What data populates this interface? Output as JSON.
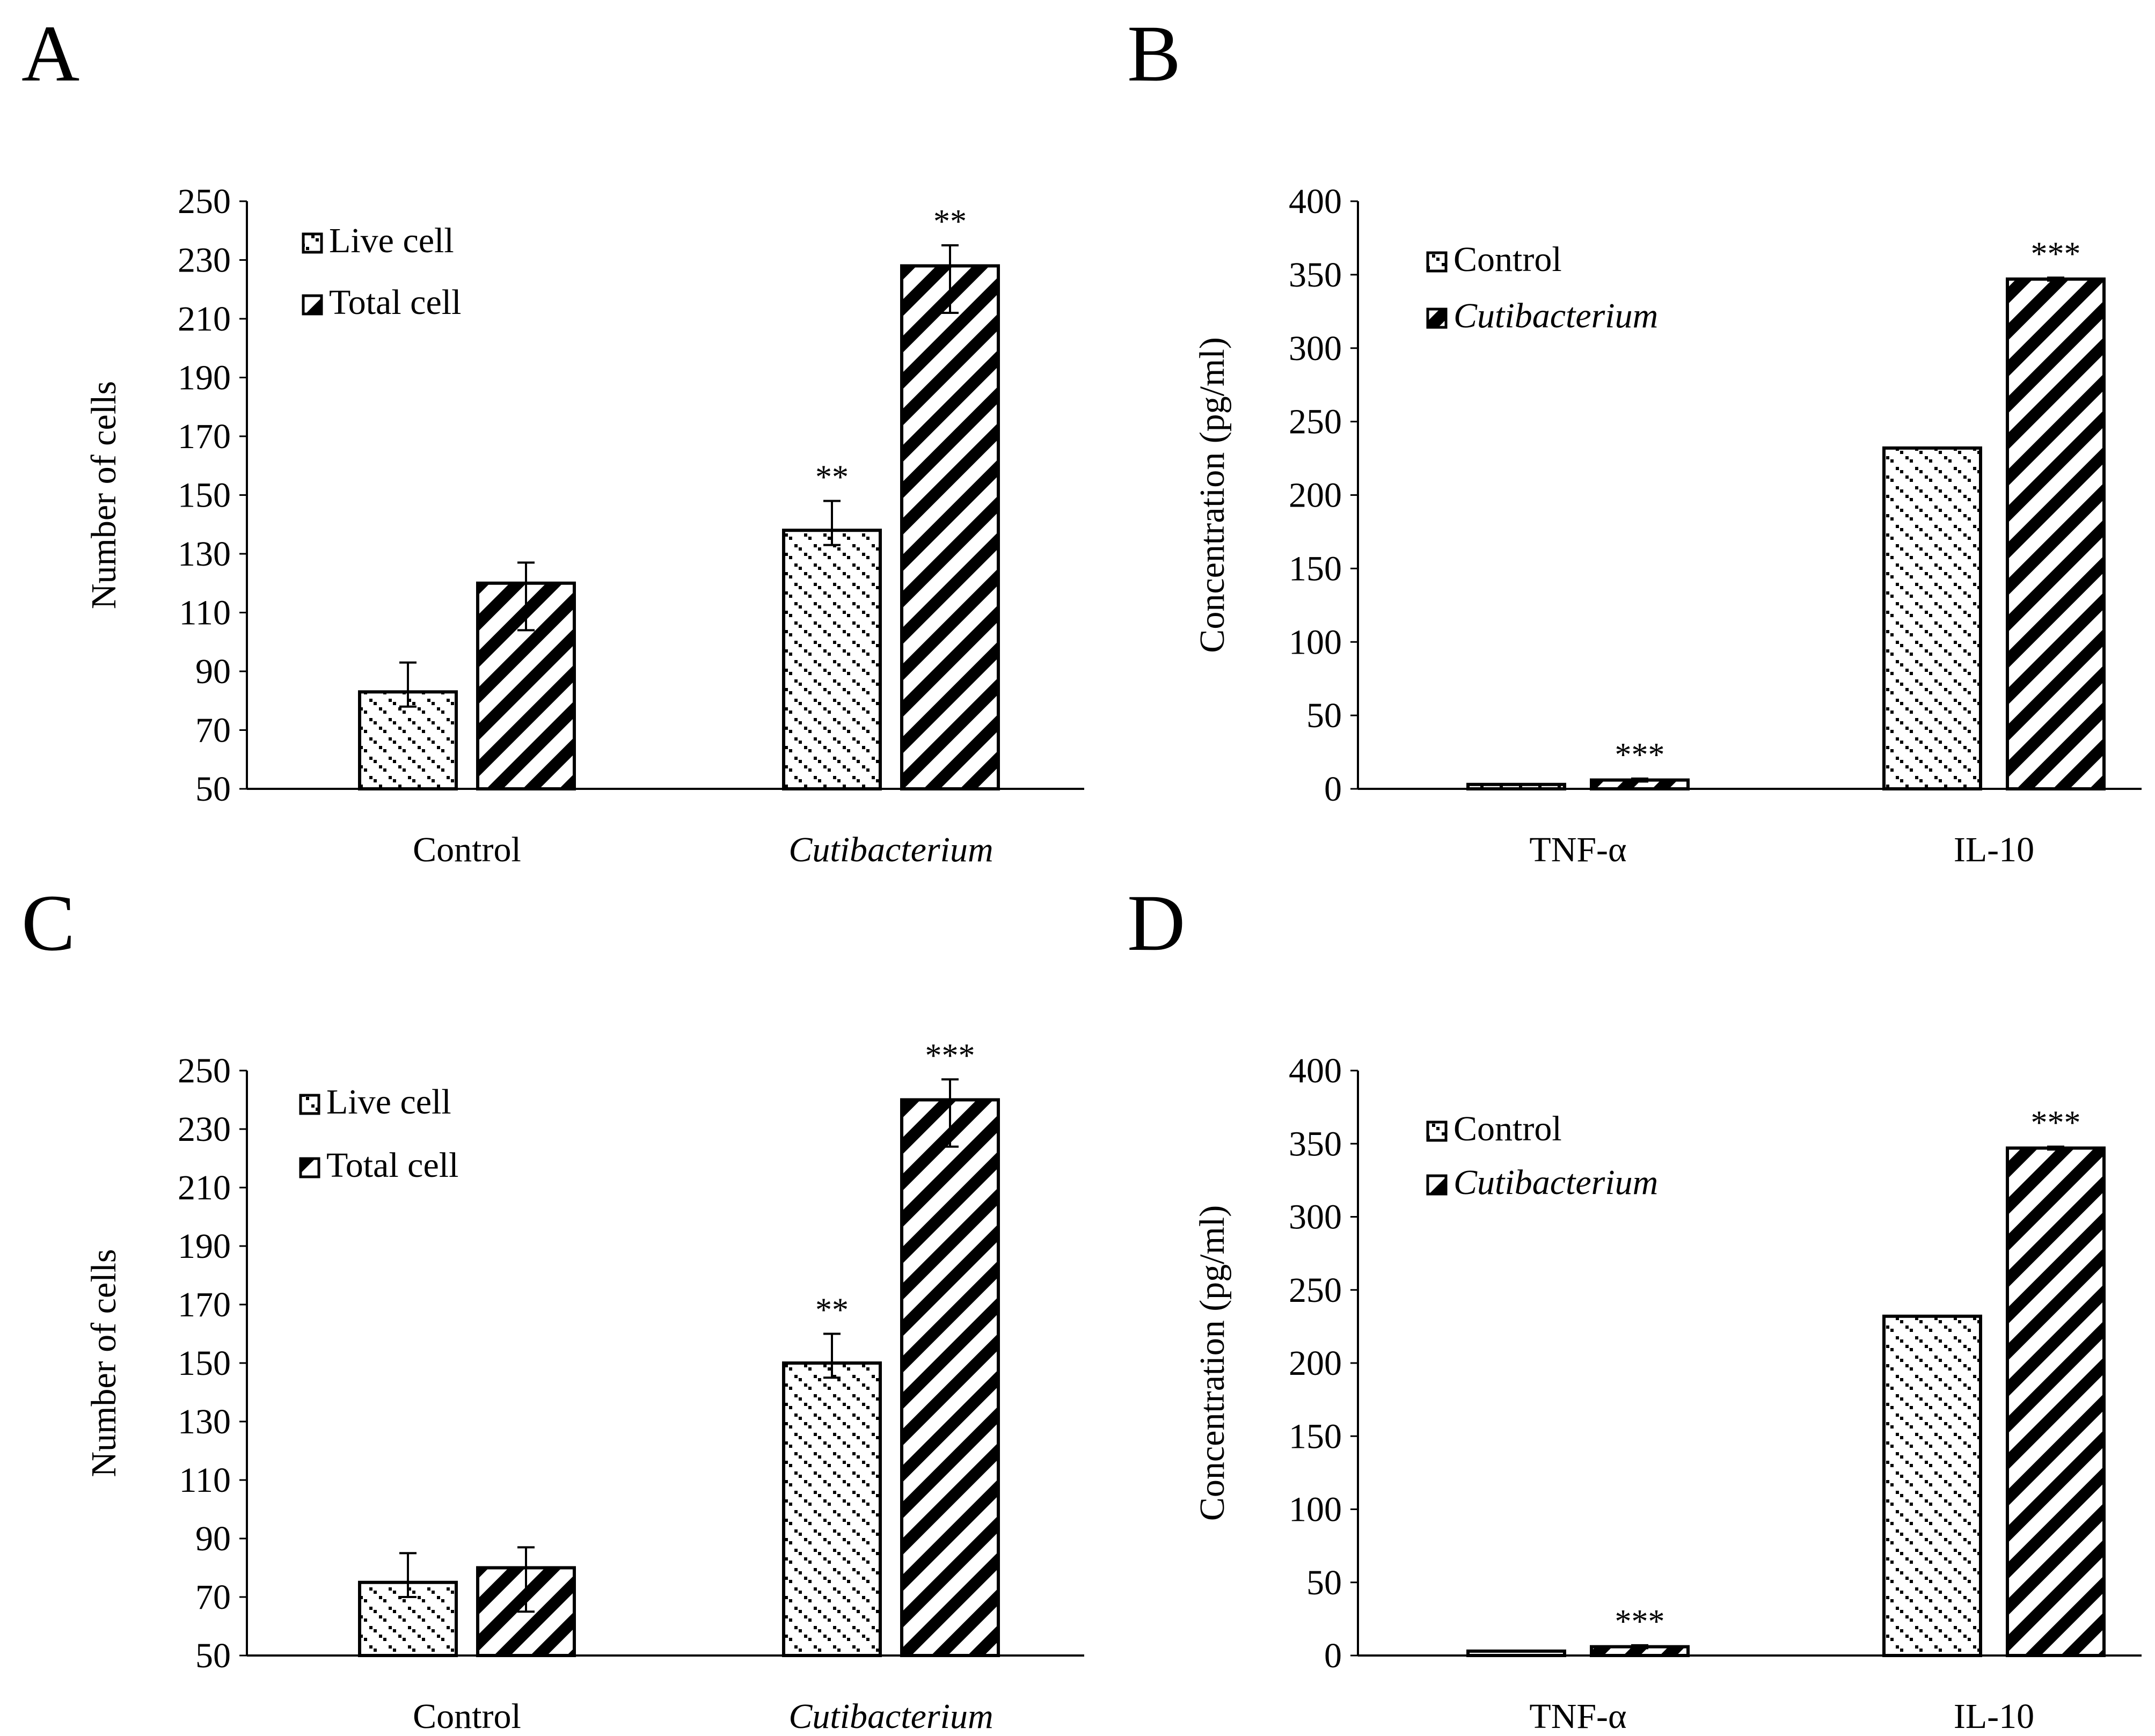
{
  "chart_data": [
    {
      "type": "bar",
      "panel_label": "A",
      "categories": [
        "Control",
        "Cutibacterium"
      ],
      "category_italic": [
        false,
        true
      ],
      "ylabel": "Number of cells",
      "xlabel": "",
      "ylim": [
        50,
        250
      ],
      "yticks": [
        50,
        70,
        90,
        110,
        130,
        150,
        170,
        190,
        210,
        230,
        250
      ],
      "legend_position": "top-left",
      "series": [
        {
          "name": "Live cell",
          "italic": false,
          "pattern": "dots",
          "values": [
            83,
            138
          ],
          "err_low": [
            78,
            133
          ],
          "err_high": [
            93,
            148
          ],
          "significance": [
            "",
            "**"
          ]
        },
        {
          "name": "Total cell",
          "italic": false,
          "pattern": "stripes",
          "values": [
            120,
            228
          ],
          "err_low": [
            104,
            212
          ],
          "err_high": [
            127,
            235
          ],
          "significance": [
            "",
            "**"
          ]
        }
      ]
    },
    {
      "type": "bar",
      "panel_label": "B",
      "categories": [
        "TNF-α",
        "IL-10"
      ],
      "category_italic": [
        false,
        false
      ],
      "ylabel": "Concentration (pg/ml)",
      "xlabel": "",
      "ylim": [
        0,
        400
      ],
      "yticks": [
        0,
        50,
        100,
        150,
        200,
        250,
        300,
        350,
        400
      ],
      "legend_position": "top-left",
      "series": [
        {
          "name": "Control",
          "italic": false,
          "pattern": "dots",
          "values": [
            3,
            232
          ],
          "err_low": [
            3,
            232
          ],
          "err_high": [
            3,
            232
          ],
          "significance": [
            "",
            ""
          ]
        },
        {
          "name": "Cutibacterium",
          "italic": true,
          "pattern": "stripes",
          "values": [
            6,
            347
          ],
          "err_low": [
            5,
            346
          ],
          "err_high": [
            7,
            348
          ],
          "significance": [
            "***",
            "***"
          ]
        }
      ]
    },
    {
      "type": "bar",
      "panel_label": "C",
      "categories": [
        "Control",
        "Cutibacterium"
      ],
      "category_italic": [
        false,
        true
      ],
      "ylabel": "Number of cells",
      "xlabel": "",
      "ylim": [
        50,
        250
      ],
      "yticks": [
        50,
        70,
        90,
        110,
        130,
        150,
        170,
        190,
        210,
        230,
        250
      ],
      "legend_position": "top-left",
      "series": [
        {
          "name": "Live cell",
          "italic": false,
          "pattern": "dots",
          "values": [
            75,
            150
          ],
          "err_low": [
            70,
            145
          ],
          "err_high": [
            85,
            160
          ],
          "significance": [
            "",
            "**"
          ]
        },
        {
          "name": "Total cell",
          "italic": false,
          "pattern": "stripes",
          "values": [
            80,
            240
          ],
          "err_low": [
            65,
            224
          ],
          "err_high": [
            87,
            247
          ],
          "significance": [
            "",
            "***"
          ]
        }
      ]
    },
    {
      "type": "bar",
      "panel_label": "D",
      "categories": [
        "TNF-α",
        "IL-10"
      ],
      "category_italic": [
        false,
        false
      ],
      "ylabel": "Concentration (pg/ml)",
      "xlabel": "",
      "ylim": [
        0,
        400
      ],
      "yticks": [
        0,
        50,
        100,
        150,
        200,
        250,
        300,
        350,
        400
      ],
      "legend_position": "top-left",
      "series": [
        {
          "name": "Control",
          "italic": false,
          "pattern": "dots",
          "values": [
            3,
            232
          ],
          "err_low": [
            3,
            232
          ],
          "err_high": [
            3,
            232
          ],
          "significance": [
            "",
            ""
          ]
        },
        {
          "name": "Cutibacterium",
          "italic": true,
          "pattern": "stripes",
          "values": [
            6,
            347
          ],
          "err_low": [
            5,
            346
          ],
          "err_high": [
            7,
            348
          ],
          "significance": [
            "***",
            "***"
          ]
        }
      ]
    }
  ]
}
